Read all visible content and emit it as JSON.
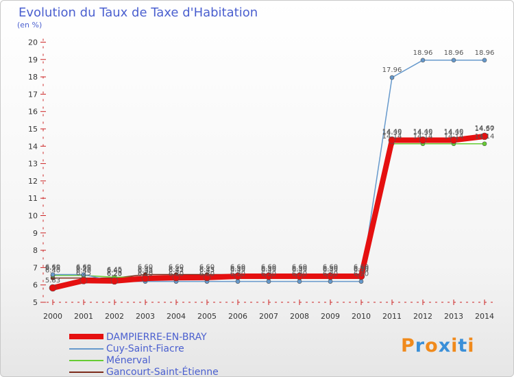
{
  "title": "Evolution du Taux de Taxe d'Habitation",
  "unit_label": "(en %)",
  "logo": {
    "text": "Proxiti",
    "colors": [
      "#f08a1c",
      "#3a8fd8",
      "#f08a1c",
      "#3a8fd8",
      "#f08a1c",
      "#3a8fd8",
      "#f08a1c"
    ]
  },
  "chart_data": {
    "type": "line",
    "x": [
      "2000",
      "2001",
      "2002",
      "2003",
      "2004",
      "2005",
      "2006",
      "2007",
      "2008",
      "2009",
      "2010",
      "2011",
      "2012",
      "2013",
      "2014"
    ],
    "ylim": [
      5,
      20
    ],
    "yticks": [
      "5",
      "6",
      "7",
      "8",
      "9",
      "10",
      "11",
      "12",
      "13",
      "14",
      "15",
      "16",
      "17",
      "18",
      "19",
      "20"
    ],
    "grid": false,
    "legend_position": "bottom-left",
    "series": [
      {
        "name": "Gancourt-Saint-Étienne",
        "color": "#7b2a1a",
        "values": [
          6.4,
          6.4,
          6.4,
          6.6,
          6.6,
          6.6,
          6.6,
          6.6,
          6.6,
          6.6,
          6.6,
          14.4,
          14.4,
          14.4,
          14.6
        ],
        "labels": [
          "6.40",
          "6.40",
          "6.40",
          "6.60",
          "6.60",
          "6.60",
          "6.60",
          "6.60",
          "6.60",
          "6.60",
          "6.60",
          "14.40",
          "14.40",
          "14.40",
          "14.60"
        ]
      },
      {
        "name": "Ménerval",
        "color": "#66cc33",
        "values": [
          6.55,
          6.55,
          6.45,
          6.45,
          6.45,
          6.45,
          6.45,
          6.45,
          6.45,
          6.45,
          6.45,
          14.14,
          14.14,
          14.14,
          14.14
        ],
        "labels": [
          "6.55",
          "6.55",
          "6.45",
          "6.45",
          "6.45",
          "6.45",
          "6.45",
          "6.45",
          "6.45",
          "6.45",
          "6.45",
          "14.14",
          "14.14",
          "14.14",
          "14.14"
        ]
      },
      {
        "name": "Cuy-Saint-Fiacre",
        "color": "#6699cc",
        "values": [
          6.6,
          6.6,
          6.2,
          6.2,
          6.2,
          6.2,
          6.2,
          6.2,
          6.2,
          6.2,
          6.2,
          17.96,
          18.96,
          18.96,
          18.96
        ],
        "labels": [
          "6.60",
          "6.60",
          "6.20",
          "6.20",
          "6.20",
          "6.20",
          "6.20",
          "6.20",
          "6.20",
          "6.20",
          "6.20",
          "17.96",
          "18.96",
          "18.96",
          "18.96"
        ]
      },
      {
        "name": "DAMPIERRE-EN-BRAY",
        "color": "#e51010",
        "values": [
          5.83,
          6.25,
          6.23,
          6.38,
          6.42,
          6.43,
          6.5,
          6.5,
          6.5,
          6.5,
          6.5,
          14.35,
          14.35,
          14.35,
          14.57
        ],
        "labels": [
          "5.83",
          "6.25",
          "6.23",
          "6.38",
          "6.42",
          "6.43",
          "6.50",
          "6.50",
          "6.50",
          "6.50",
          "6.50",
          "14.35",
          "14.35",
          "14.35",
          "14.57"
        ]
      }
    ]
  },
  "legend": [
    {
      "label": "DAMPIERRE-EN-BRAY",
      "color": "#e51010",
      "thick": true
    },
    {
      "label": "Cuy-Saint-Fiacre",
      "color": "#6699cc",
      "thick": false
    },
    {
      "label": "Ménerval",
      "color": "#66cc33",
      "thick": false
    },
    {
      "label": "Gancourt-Saint-Étienne",
      "color": "#7b2a1a",
      "thick": false
    }
  ]
}
